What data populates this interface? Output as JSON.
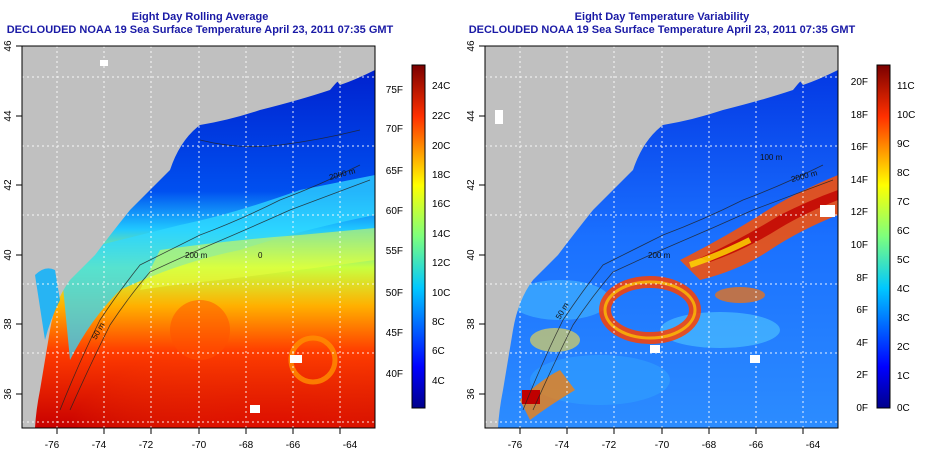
{
  "left_panel": {
    "title_line1": "Eight Day Rolling Average",
    "title_line2": "DECLOUDED NOAA 19 Sea Surface Temperature April 23, 2011 07:35 GMT",
    "x_ticks": [
      "-76",
      "-74",
      "-72",
      "-70",
      "-68",
      "-66",
      "-64"
    ],
    "y_ticks": [
      "46",
      "44",
      "42",
      "40",
      "38",
      "36"
    ],
    "colorbar": {
      "fahrenheit_labels": [
        "75F",
        "70F",
        "65F",
        "60F",
        "55F",
        "50F",
        "45F",
        "40F"
      ],
      "celsius_labels": [
        "24C",
        "22C",
        "20C",
        "18C",
        "16C",
        "14C",
        "12C",
        "10C",
        "8C",
        "6C",
        "4C"
      ]
    },
    "contour_labels": [
      "200 m",
      "2000 m",
      "50 m",
      "0"
    ]
  },
  "right_panel": {
    "title_line1": "Eight Day Temperature Variability",
    "title_line2": "DECLOUDED NOAA 19 Sea Surface Temperature April 23, 2011 07:35 GMT",
    "x_ticks": [
      "-76",
      "-74",
      "-72",
      "-70",
      "-68",
      "-66",
      "-64"
    ],
    "y_ticks": [
      "46",
      "44",
      "42",
      "40",
      "38",
      "36"
    ],
    "colorbar": {
      "fahrenheit_labels": [
        "20F",
        "18F",
        "16F",
        "14F",
        "12F",
        "10F",
        "8F",
        "6F",
        "4F",
        "2F",
        "0F"
      ],
      "celsius_labels": [
        "11C",
        "10C",
        "9C",
        "8C",
        "7C",
        "6C",
        "5C",
        "4C",
        "3C",
        "2C",
        "1C",
        "0C"
      ]
    },
    "contour_labels": [
      "200 m",
      "2000 m",
      "50 m",
      "100 m"
    ]
  },
  "colors": {
    "land": "#c0c0c0",
    "title": "#1a1aa6",
    "scale_low": "#00008b",
    "scale_high": "#7a0000"
  }
}
